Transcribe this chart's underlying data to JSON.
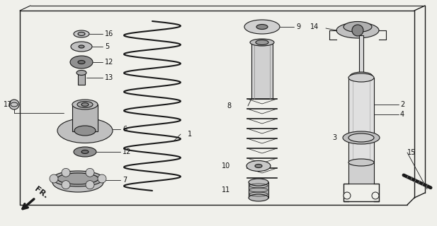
{
  "bg_color": "#f0f0eb",
  "line_color": "#1a1a1a",
  "text_color": "#111111",
  "figsize": [
    6.17,
    3.2
  ],
  "dpi": 100
}
